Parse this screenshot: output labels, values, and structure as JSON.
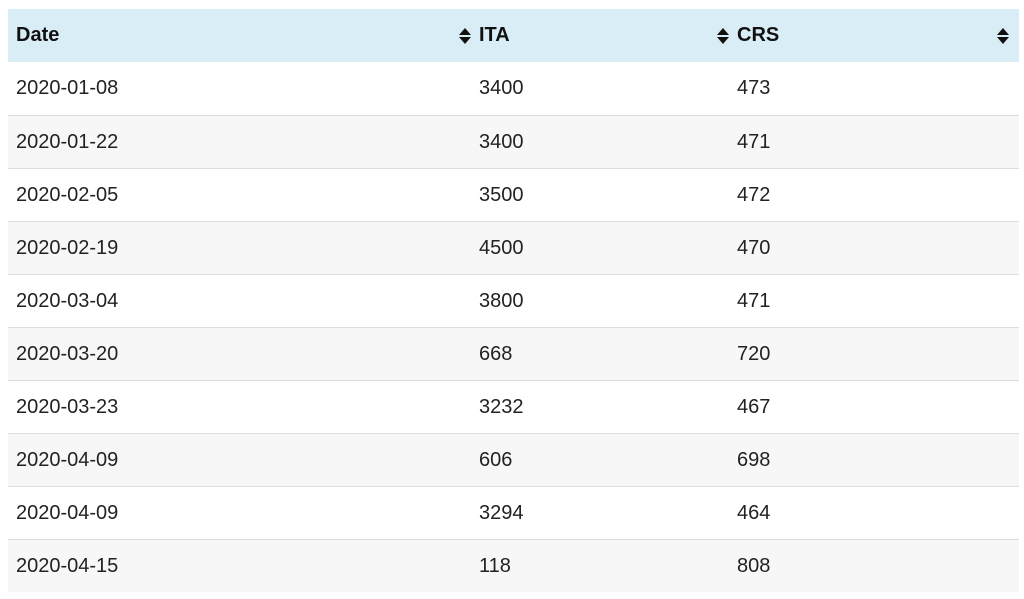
{
  "table": {
    "columns": [
      {
        "label": "Date",
        "sort_icon": "sort-both-icon"
      },
      {
        "label": "ITA",
        "sort_icon": "sort-both-icon"
      },
      {
        "label": "CRS",
        "sort_icon": "sort-both-icon"
      }
    ],
    "rows": [
      {
        "date": "2020-01-08",
        "ita": "3400",
        "crs": "473"
      },
      {
        "date": "2020-01-22",
        "ita": "3400",
        "crs": "471"
      },
      {
        "date": "2020-02-05",
        "ita": "3500",
        "crs": "472"
      },
      {
        "date": "2020-02-19",
        "ita": "4500",
        "crs": "470"
      },
      {
        "date": "2020-03-04",
        "ita": "3800",
        "crs": "471"
      },
      {
        "date": "2020-03-20",
        "ita": "668",
        "crs": "720"
      },
      {
        "date": "2020-03-23",
        "ita": "3232",
        "crs": "467"
      },
      {
        "date": "2020-04-09",
        "ita": "606",
        "crs": "698"
      },
      {
        "date": "2020-04-09",
        "ita": "3294",
        "crs": "464"
      },
      {
        "date": "2020-04-15",
        "ita": "118",
        "crs": "808"
      }
    ],
    "colors": {
      "header_bg": "#d9edf7",
      "row_alt_bg": "#f7f7f7",
      "border": "#dddddd"
    }
  }
}
